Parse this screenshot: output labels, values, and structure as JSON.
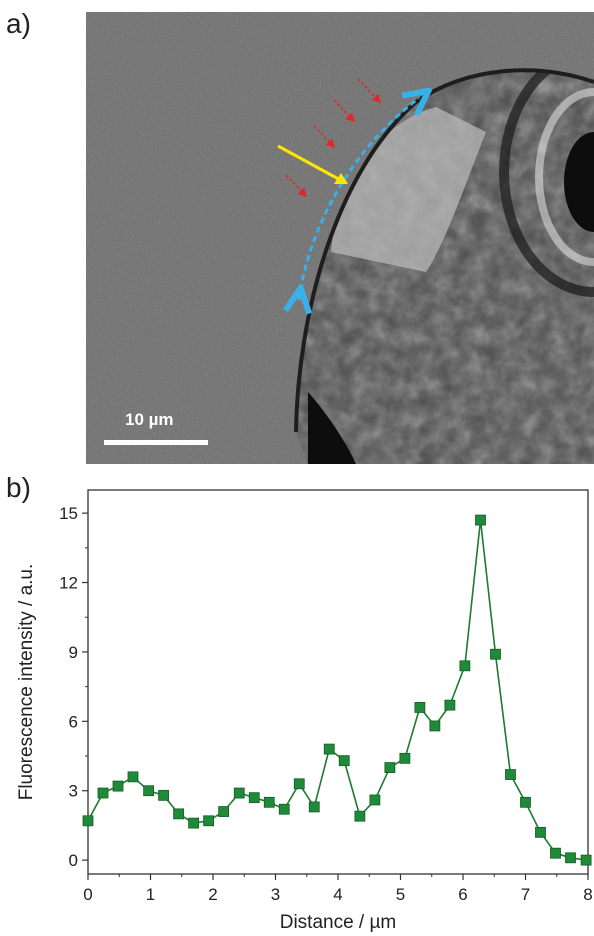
{
  "panels": {
    "a_label": "a)",
    "b_label": "b)"
  },
  "micrograph": {
    "scale_bar_label": "10 µm"
  },
  "colors": {
    "series": "#1f7a2f",
    "marker": "#1f8a3a",
    "scan_path": "#3ab0e8",
    "pointer_arrow": "#ffe600",
    "small_arrows": "#e0282a"
  },
  "chart_data": {
    "type": "line",
    "xlabel": "Distance / µm",
    "ylabel": "Fluorescence intensity / a.u.",
    "xlim": [
      0,
      8
    ],
    "ylim": [
      -0.6,
      16
    ],
    "xticks": [
      0,
      1,
      2,
      3,
      4,
      5,
      6,
      7,
      8
    ],
    "yticks": [
      0,
      3,
      6,
      9,
      12,
      15
    ],
    "grid": false,
    "markers": "square",
    "x": [
      0,
      0.24,
      0.48,
      0.72,
      0.97,
      1.21,
      1.45,
      1.69,
      1.93,
      2.17,
      2.42,
      2.66,
      2.9,
      3.14,
      3.38,
      3.62,
      3.86,
      4.1,
      4.35,
      4.59,
      4.83,
      5.07,
      5.31,
      5.55,
      5.79,
      6.03,
      6.28,
      6.52,
      6.76,
      7.0,
      7.24,
      7.48,
      7.72,
      7.97
    ],
    "y": [
      1.7,
      2.9,
      3.2,
      3.6,
      3.0,
      2.8,
      2.0,
      1.6,
      1.7,
      2.1,
      2.9,
      2.7,
      2.5,
      2.2,
      3.3,
      2.3,
      4.8,
      4.3,
      1.9,
      2.6,
      4.0,
      4.4,
      6.6,
      5.8,
      6.7,
      8.4,
      14.7,
      8.9,
      3.7,
      2.5,
      1.2,
      0.3,
      0.1,
      0.0
    ]
  }
}
